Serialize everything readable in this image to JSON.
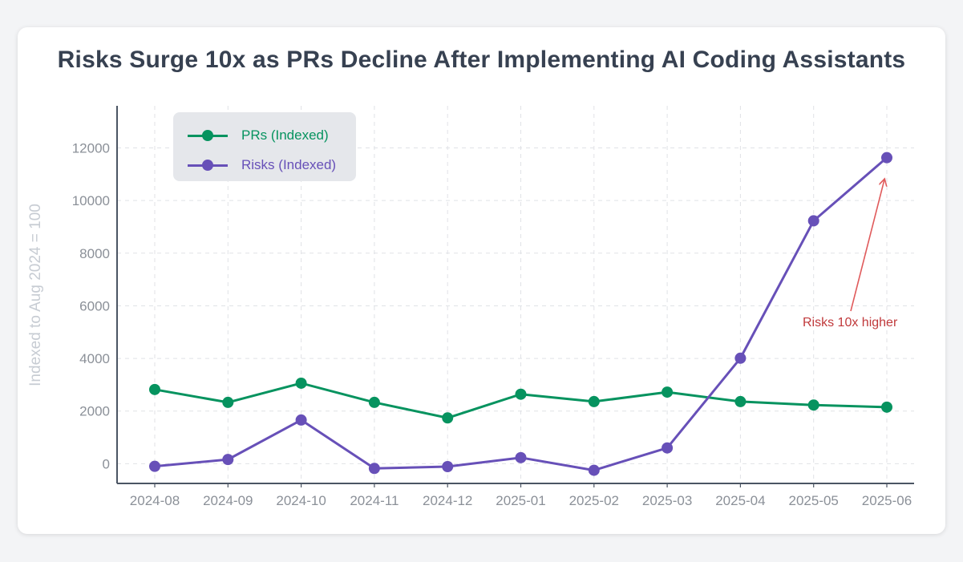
{
  "colors": {
    "prs": "#06935f",
    "risks": "#6750b8",
    "annotation": "#e05a5b",
    "axis": "#4b5563",
    "tick": "#8b9098",
    "grid": "#e0e2e6"
  },
  "chart_data": {
    "type": "line",
    "title": "Risks Surge 10x as PRs Decline After Implementing AI Coding Assistants",
    "xlabel": "",
    "ylabel": "Indexed to Aug 2024 = 100",
    "categories": [
      "2024-08",
      "2024-09",
      "2024-10",
      "2024-11",
      "2024-12",
      "2025-01",
      "2025-02",
      "2025-03",
      "2025-04",
      "2025-05",
      "2025-06"
    ],
    "yticks": [
      0,
      2000,
      4000,
      6000,
      8000,
      10000,
      12000
    ],
    "ylim": [
      -750,
      13600
    ],
    "grid": true,
    "legend_position": "top-left",
    "series": [
      {
        "name": "PRs (Indexed)",
        "values": [
          2820,
          2330,
          3060,
          2330,
          1740,
          2640,
          2360,
          2720,
          2360,
          2230,
          2150
        ]
      },
      {
        "name": "Risks (Indexed)",
        "values": [
          -100,
          160,
          1660,
          -180,
          -110,
          230,
          -250,
          600,
          4010,
          9230,
          11630
        ]
      }
    ],
    "annotation": {
      "text": "Risks 10x higher",
      "target_category": "2025-06",
      "target_value": 10800
    }
  }
}
